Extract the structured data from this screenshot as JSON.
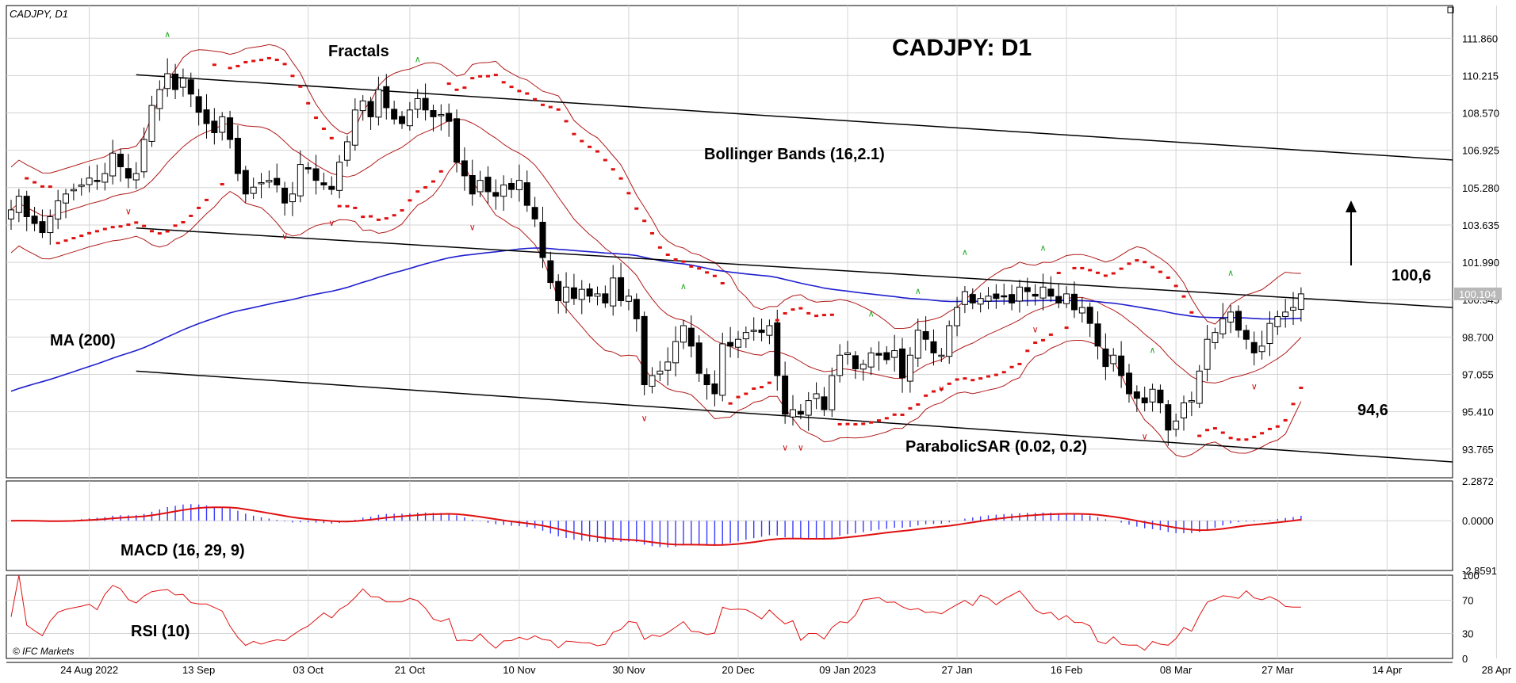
{
  "header": {
    "symbol_label": "CADJPY, D1",
    "chart_title": "CADJPY: D1",
    "watermark": "© IFC Markets"
  },
  "annotations": {
    "fractals": "Fractals",
    "bollinger": "Bollinger Bands (16,2.1)",
    "ma": "MA (200)",
    "sar": "ParabolicSAR (0.02, 0.2)",
    "macd": "MACD (16, 29, 9)",
    "rsi": "RSI (10)",
    "target_up": "100,6",
    "target_down": "94,6",
    "current_price": "100.104"
  },
  "colors": {
    "bull": "#ffffff",
    "bear": "#000000",
    "ma200": "#1f1fcf",
    "bollinger": "#b11a1a",
    "sar": "#e01010",
    "fractal_up": "#22aa22",
    "fractal_down": "#cc1111",
    "macd_hist": "#3a3aff",
    "macd_signal": "#e01010",
    "rsi": "#e01010",
    "grid": "#d4d4d4"
  },
  "chart_data": [
    {
      "type": "candlestick",
      "title": "CADJPY: D1",
      "ylim": [
        92.5,
        113.3
      ],
      "ylabels": [
        "111.860",
        "110.215",
        "108.570",
        "106.925",
        "105.280",
        "103.635",
        "101.990",
        "100.345",
        "98.700",
        "97.055",
        "95.410",
        "93.765"
      ],
      "xlabels": [
        "24 Aug 2022",
        "13 Sep",
        "03 Oct",
        "21 Oct",
        "10 Nov",
        "30 Nov",
        "20 Dec",
        "09 Jan 2023",
        "27 Jan",
        "16 Feb",
        "08 Mar",
        "27 Mar",
        "14 Apr",
        "28 Apr"
      ],
      "close": [
        104.3,
        104.9,
        104.0,
        103.7,
        103.3,
        104.0,
        104.7,
        105.0,
        105.2,
        105.4,
        105.7,
        105.6,
        105.9,
        106.8,
        106.2,
        105.7,
        105.9,
        107.4,
        108.9,
        109.6,
        110.3,
        109.6,
        110.1,
        109.4,
        108.6,
        108.1,
        107.7,
        108.4,
        107.4,
        105.9,
        105.0,
        105.3,
        105.5,
        105.6,
        105.4,
        104.6,
        105.0,
        106.3,
        106.1,
        105.6,
        105.4,
        105.2,
        106.4,
        107.3,
        108.7,
        109.1,
        108.4,
        109.6,
        108.8,
        108.3,
        108.1,
        108.7,
        109.2,
        108.7,
        108.4,
        108.5,
        108.2,
        106.4,
        105.8,
        105.0,
        105.6,
        105.1,
        104.9,
        105.4,
        105.2,
        105.6,
        104.5,
        103.9,
        102.2,
        101.1,
        100.3,
        100.9,
        100.4,
        100.8,
        100.5,
        100.6,
        100.2,
        101.3,
        100.3,
        100.5,
        99.5,
        96.6,
        97.0,
        97.2,
        97.6,
        98.5,
        99.2,
        98.3,
        97.1,
        96.6,
        96.2,
        98.4,
        98.3,
        98.6,
        98.9,
        99.0,
        98.9,
        99.2,
        97.0,
        95.3,
        95.5,
        95.3,
        95.9,
        96.2,
        95.5,
        97.0,
        97.9,
        98.0,
        97.3,
        97.5,
        98.0,
        97.9,
        97.7,
        98.1,
        96.9,
        97.9,
        99.0,
        98.6,
        98.0,
        97.9,
        99.2,
        100.0,
        100.7,
        100.2,
        100.4,
        100.5,
        100.4,
        100.5,
        100.2,
        100.9,
        100.7,
        100.5,
        100.9,
        100.5,
        100.2,
        100.6,
        99.9,
        100.0,
        99.3,
        98.3,
        97.4,
        97.9,
        97.0,
        96.2,
        96.0,
        95.8,
        96.4,
        95.8,
        94.6,
        95.0,
        95.8,
        95.9,
        97.2,
        98.6,
        98.9,
        99.5,
        99.8,
        99.0,
        98.6,
        98.0,
        98.3,
        99.3,
        99.6,
        99.8,
        100.0,
        100.6
      ]
    },
    {
      "type": "macd",
      "title": "MACD (16, 29, 9)",
      "ylim": [
        -2.8591,
        2.2872
      ],
      "ylabels": [
        "2.2872",
        "0.0000",
        "-2.8591"
      ]
    },
    {
      "type": "rsi",
      "title": "RSI (10)",
      "ylim": [
        0,
        100
      ],
      "ylabels": [
        "100",
        "70",
        "30",
        "0"
      ]
    }
  ]
}
